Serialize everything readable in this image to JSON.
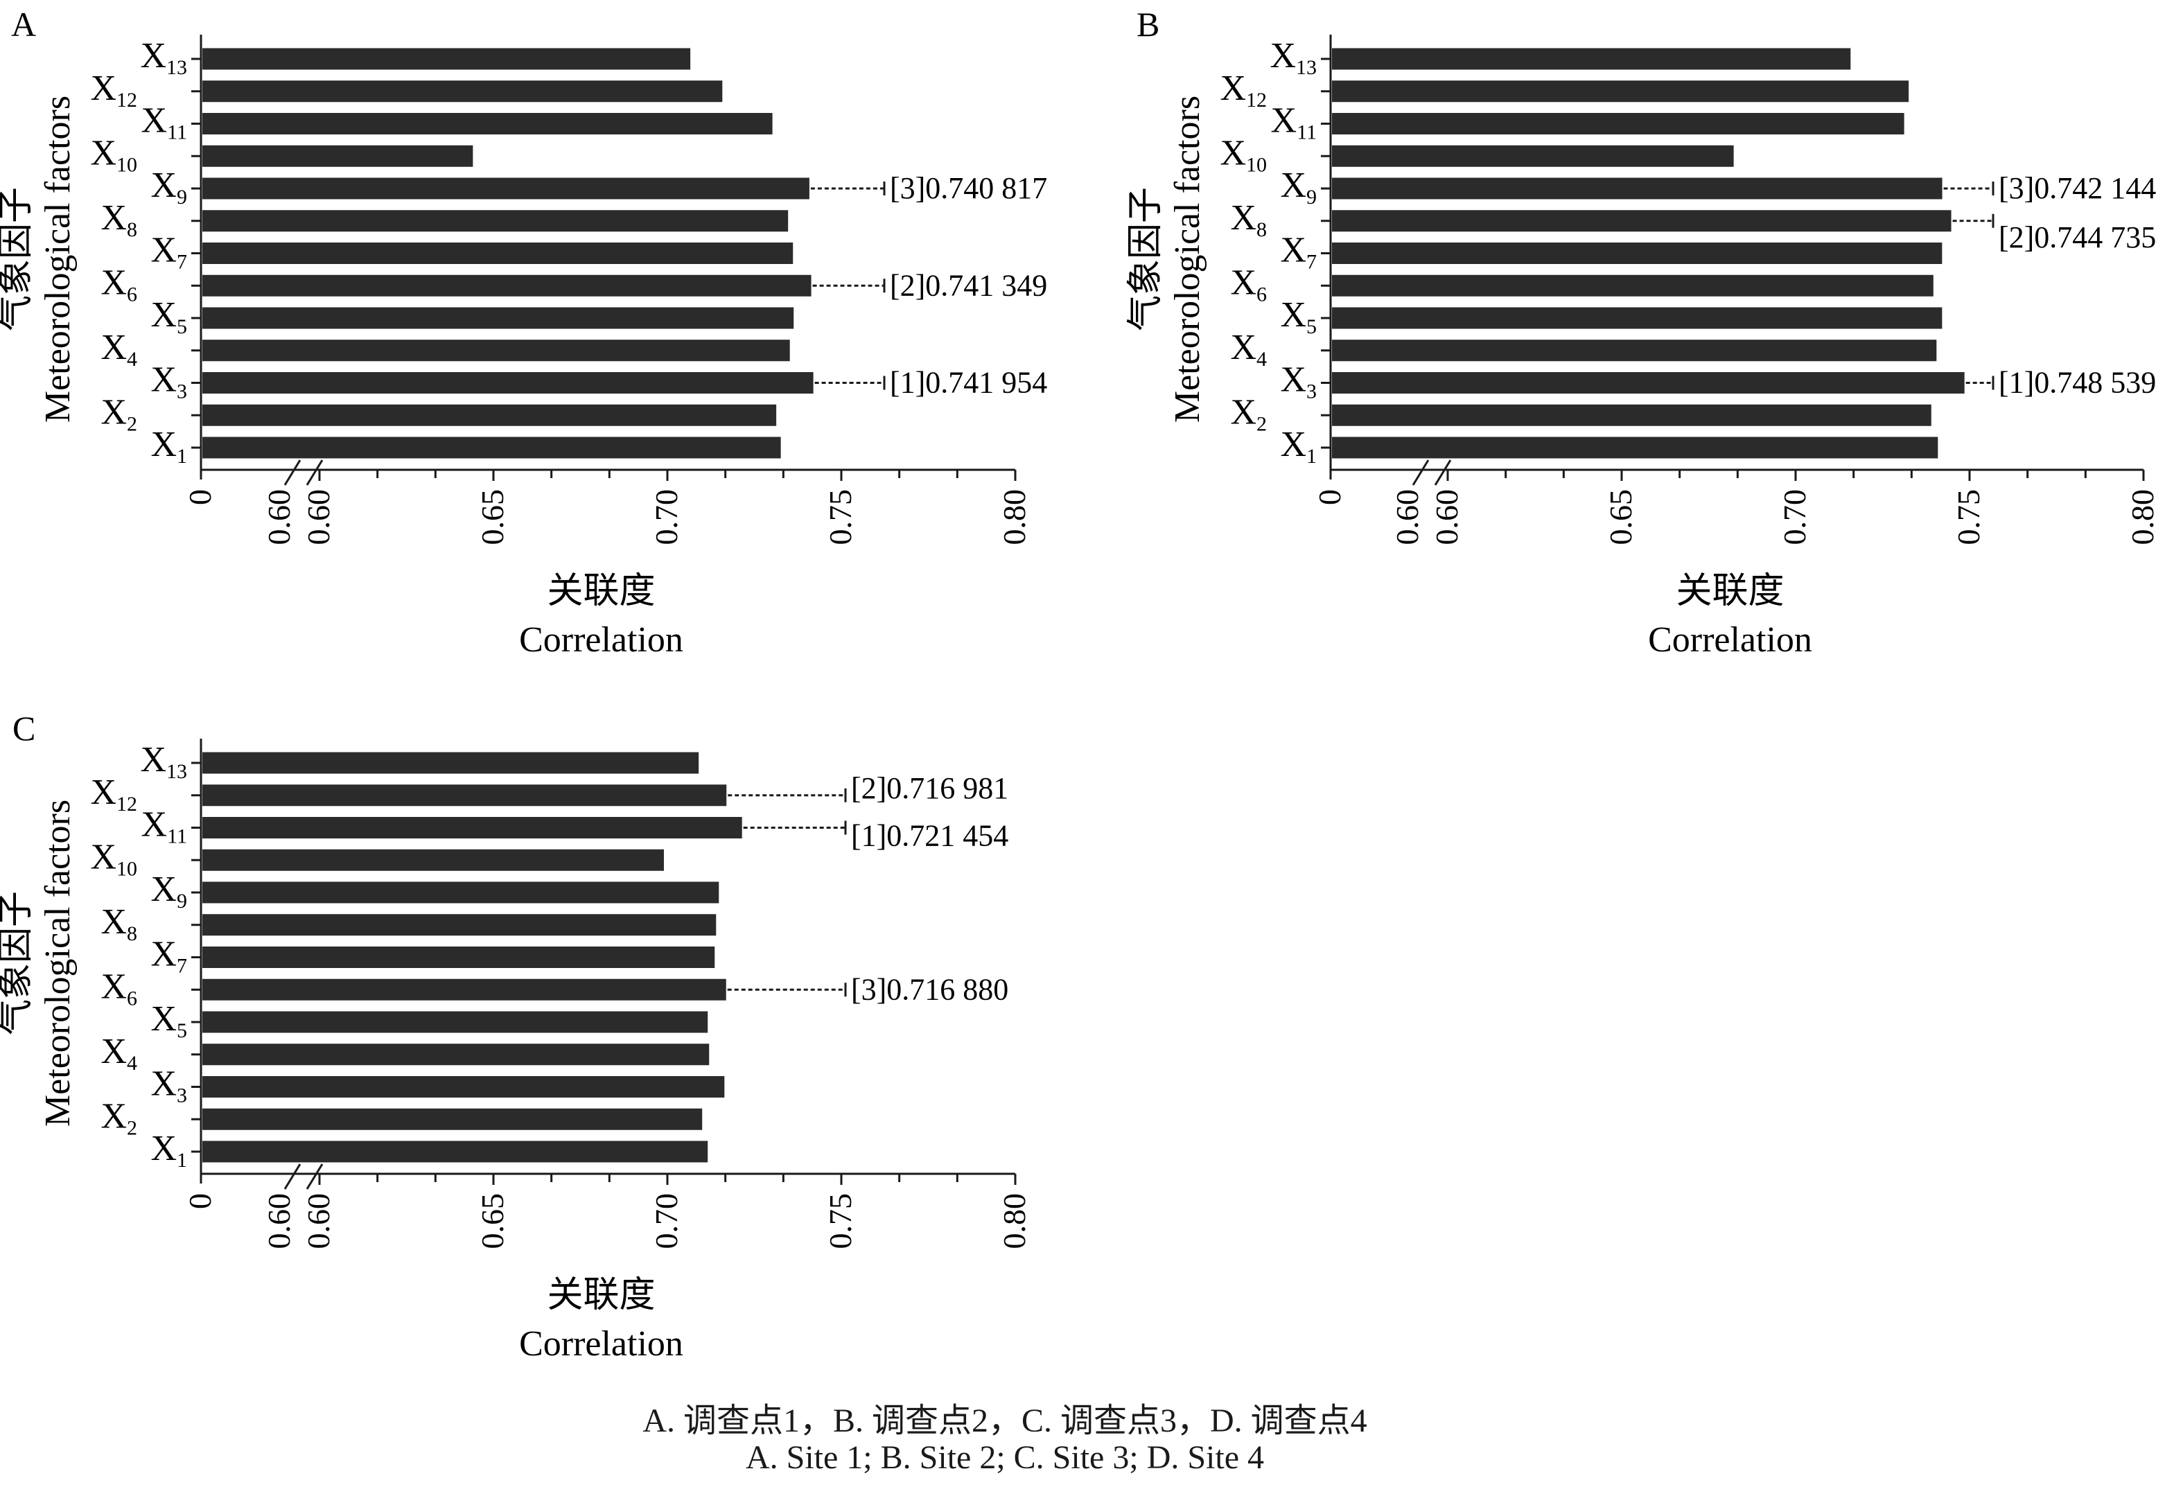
{
  "caption": {
    "line1": "A. 调查点1，B. 调查点2，C. 调查点3，D. 调查点4",
    "line2": "A. Site 1; B. Site 2; C. Site 3; D. Site 4"
  },
  "colors": {
    "bar": "#2b2b2b",
    "axis": "#1a1a1a"
  },
  "chart_data": [
    {
      "panel": "A",
      "type": "bar",
      "orientation": "horizontal",
      "categories": [
        "X1",
        "X2",
        "X3",
        "X4",
        "X5",
        "X6",
        "X7",
        "X8",
        "X9",
        "X10",
        "X11",
        "X12",
        "X13"
      ],
      "values": [
        0.7326,
        0.7313,
        0.741954,
        0.7352,
        0.7363,
        0.741349,
        0.7361,
        0.7347,
        0.740817,
        0.6441,
        0.7302,
        0.7158,
        0.7066
      ],
      "ylabel_cn": "气象因子",
      "ylabel_en": "Meteorological factors",
      "xlabel_cn": "关联度",
      "xlabel_en": "Correlation",
      "x_ticks": [
        "0",
        "0.60",
        "0.60",
        "0.65",
        "0.70",
        "0.75",
        "0.80"
      ],
      "xlim": [
        0.6,
        0.8
      ],
      "axis_break": true,
      "annotations": [
        {
          "category": "X3",
          "text": "[1]0.741 954"
        },
        {
          "category": "X6",
          "text": "[2]0.741 349"
        },
        {
          "category": "X9",
          "text": "[3]0.740 817"
        }
      ]
    },
    {
      "panel": "B",
      "type": "bar",
      "orientation": "horizontal",
      "categories": [
        "X1",
        "X2",
        "X3",
        "X4",
        "X5",
        "X6",
        "X7",
        "X8",
        "X9",
        "X10",
        "X11",
        "X12",
        "X13"
      ],
      "values": [
        0.7409,
        0.739,
        0.748539,
        0.7405,
        0.7421,
        0.7396,
        0.7421,
        0.744735,
        0.742144,
        0.6822,
        0.7312,
        0.7325,
        0.7158
      ],
      "ylabel_cn": "气象因子",
      "ylabel_en": "Meteorological factors",
      "xlabel_cn": "关联度",
      "xlabel_en": "Correlation",
      "x_ticks": [
        "0",
        "0.60",
        "0.60",
        "0.65",
        "0.70",
        "0.75",
        "0.80"
      ],
      "xlim": [
        0.6,
        0.8
      ],
      "axis_break": true,
      "annotations": [
        {
          "category": "X3",
          "text": "[1]0.748 539"
        },
        {
          "category": "X8",
          "text": "[2]0.744 735"
        },
        {
          "category": "X9",
          "text": "[3]0.742 144"
        }
      ]
    },
    {
      "panel": "C",
      "type": "bar",
      "orientation": "horizontal",
      "categories": [
        "X1",
        "X2",
        "X3",
        "X4",
        "X5",
        "X6",
        "X7",
        "X8",
        "X9",
        "X10",
        "X11",
        "X12",
        "X13"
      ],
      "values": [
        0.7116,
        0.71,
        0.7164,
        0.712,
        0.7116,
        0.71688,
        0.7136,
        0.714,
        0.7148,
        0.699,
        0.721454,
        0.716981,
        0.709
      ],
      "ylabel_cn": "气象因子",
      "ylabel_en": "Meteorological factors",
      "xlabel_cn": "关联度",
      "xlabel_en": "Correlation",
      "x_ticks": [
        "0",
        "0.60",
        "0.60",
        "0.65",
        "0.70",
        "0.75",
        "0.80"
      ],
      "xlim": [
        0.6,
        0.8
      ],
      "axis_break": true,
      "annotations": [
        {
          "category": "X11",
          "text": "[1]0.721 454"
        },
        {
          "category": "X12",
          "text": "[2]0.716 981"
        },
        {
          "category": "X6",
          "text": "[3]0.716 880"
        }
      ]
    }
  ]
}
